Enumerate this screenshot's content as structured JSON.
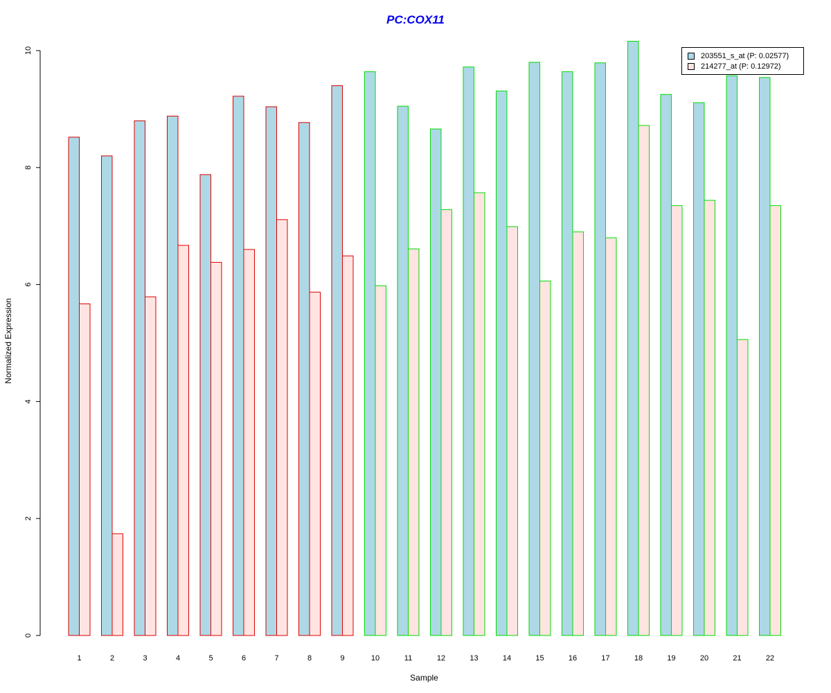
{
  "chart_data": {
    "type": "bar",
    "title": "PC:COX11",
    "xlabel": "Sample",
    "ylabel": "Normalized Expression",
    "ylim": [
      0,
      10
    ],
    "yticks": [
      0,
      2,
      4,
      6,
      8,
      10
    ],
    "grid": false,
    "legend_position": "top-right",
    "categories": [
      "1",
      "2",
      "3",
      "4",
      "5",
      "6",
      "7",
      "8",
      "9",
      "10",
      "11",
      "12",
      "13",
      "14",
      "15",
      "16",
      "17",
      "18",
      "19",
      "20",
      "21",
      "22"
    ],
    "group_outline_colors": [
      "#dd0000",
      "#dd0000",
      "#dd0000",
      "#dd0000",
      "#dd0000",
      "#dd0000",
      "#dd0000",
      "#dd0000",
      "#dd0000",
      "#00dd00",
      "#00dd00",
      "#00dd00",
      "#00dd00",
      "#00dd00",
      "#00dd00",
      "#00dd00",
      "#00dd00",
      "#00dd00",
      "#00dd00",
      "#00dd00",
      "#00dd00",
      "#00dd00"
    ],
    "series": [
      {
        "name": "203551_s_at (P: 0.02577)",
        "fill": "#add8e6",
        "values": [
          8.52,
          8.2,
          8.8,
          8.88,
          7.88,
          9.22,
          9.04,
          8.77,
          9.4,
          9.64,
          9.05,
          8.66,
          9.72,
          9.31,
          9.8,
          9.64,
          9.79,
          10.16,
          9.25,
          9.11,
          9.57,
          9.54
        ]
      },
      {
        "name": "214277_at (P: 0.12972)",
        "fill": "#ffe4e1",
        "values": [
          5.67,
          1.74,
          5.79,
          6.67,
          6.38,
          6.6,
          7.11,
          5.87,
          6.49,
          5.98,
          6.61,
          7.28,
          7.57,
          6.99,
          6.06,
          6.9,
          6.8,
          8.72,
          7.35,
          7.44,
          5.06,
          7.35
        ]
      }
    ]
  }
}
